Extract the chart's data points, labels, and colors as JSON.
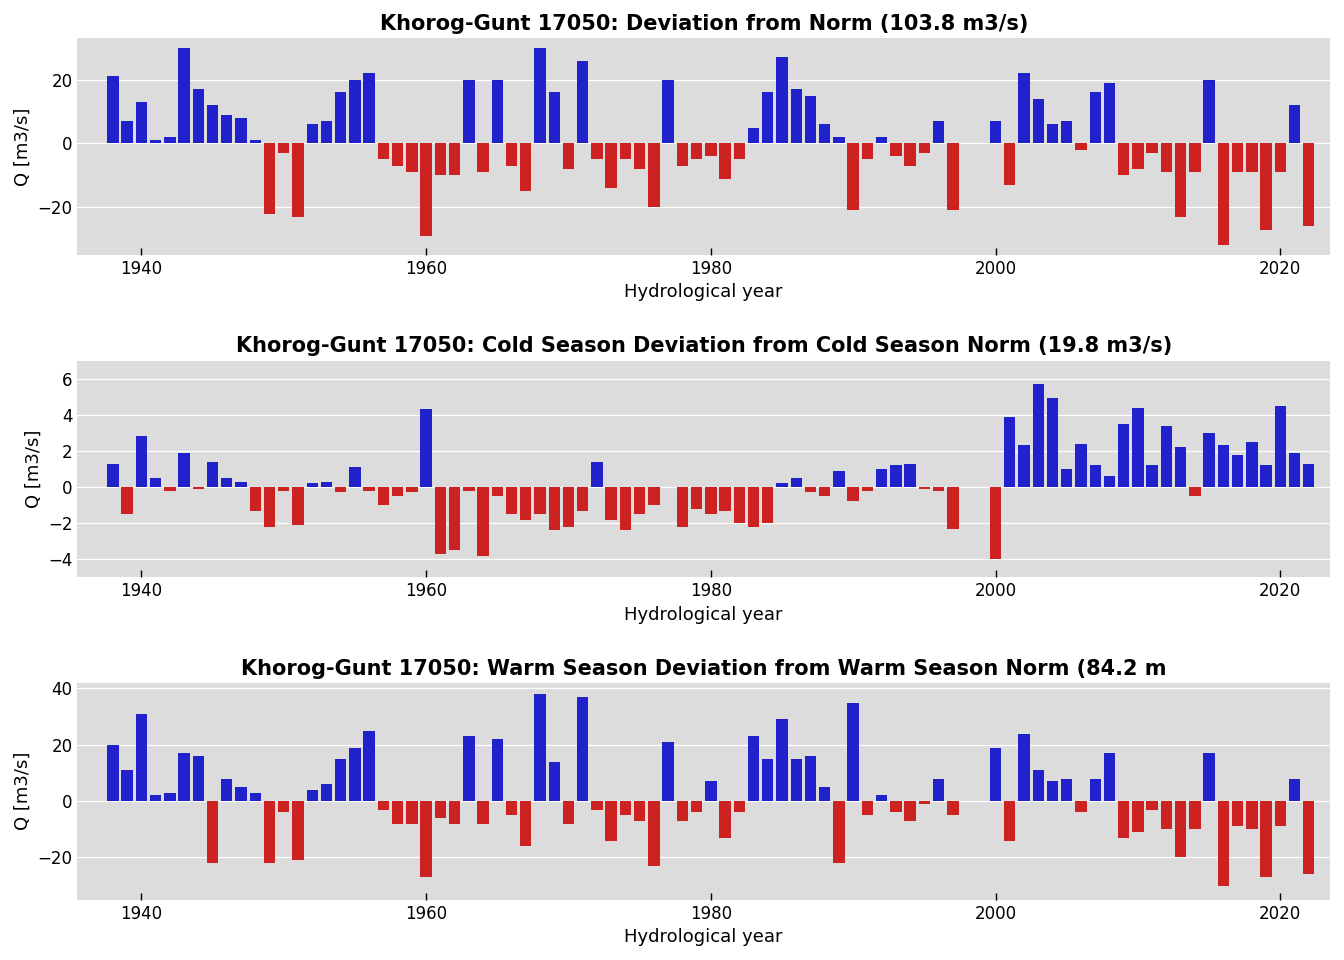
{
  "title1": "Khorog-Gunt 17050: Deviation from Norm (103.8 m3/s)",
  "title2": "Khorog-Gunt 17050: Cold Season Deviation from Cold Season Norm (19.8 m3/s)",
  "title3": "Khorog-Gunt 17050: Warm Season Deviation from Warm Season Norm (84.2 m",
  "xlabel": "Hydrological year",
  "ylabel": "Q [m3/s]",
  "background_color": "#DCDCDC",
  "blue_color": "#2222CC",
  "red_color": "#CC2222",
  "years": [
    1938,
    1939,
    1940,
    1941,
    1942,
    1943,
    1944,
    1945,
    1946,
    1947,
    1948,
    1949,
    1950,
    1951,
    1952,
    1953,
    1954,
    1955,
    1956,
    1957,
    1958,
    1959,
    1960,
    1961,
    1962,
    1963,
    1964,
    1965,
    1966,
    1967,
    1968,
    1969,
    1970,
    1971,
    1972,
    1973,
    1974,
    1975,
    1976,
    1977,
    1978,
    1979,
    1980,
    1981,
    1982,
    1983,
    1984,
    1985,
    1986,
    1987,
    1988,
    1989,
    1990,
    1991,
    1992,
    1993,
    1994,
    1995,
    1996,
    1997,
    1998,
    1999,
    2000,
    2001,
    2002,
    2003,
    2004,
    2005,
    2006,
    2007,
    2008,
    2009,
    2010,
    2011,
    2012,
    2013,
    2014,
    2015,
    2016,
    2017,
    2018,
    2019,
    2020,
    2021,
    2022
  ],
  "annual_deviations": [
    21.0,
    7.0,
    13.0,
    1.0,
    2.0,
    30.0,
    17.0,
    12.0,
    9.0,
    8.0,
    1.0,
    -22.0,
    -3.0,
    -23.0,
    6.0,
    7.0,
    16.0,
    20.0,
    22.0,
    -5.0,
    -7.0,
    -9.0,
    -29.0,
    -10.0,
    -10.0,
    20.0,
    -9.0,
    20.0,
    -7.0,
    -15.0,
    30.0,
    16.0,
    -8.0,
    26.0,
    -5.0,
    -14.0,
    -5.0,
    -8.0,
    -20.0,
    20.0,
    -7.0,
    -5.0,
    -4.0,
    -11.0,
    -5.0,
    5.0,
    16.0,
    27.0,
    17.0,
    15.0,
    6.0,
    2.0,
    -21.0,
    -5.0,
    2.0,
    -4.0,
    -7.0,
    -3.0,
    7.0,
    -21.0,
    null,
    null,
    7.0,
    -13.0,
    22.0,
    14.0,
    6.0,
    7.0,
    -2.0,
    16.0,
    19.0,
    -10.0,
    -8.0,
    -3.0,
    -9.0,
    -23.0,
    -9.0,
    20.0,
    -32.0,
    -9.0,
    -9.0,
    -27.0,
    -9.0,
    12.0,
    -26.0
  ],
  "cold_deviations": [
    1.3,
    -1.5,
    2.8,
    0.5,
    -0.2,
    1.9,
    -0.1,
    1.4,
    0.5,
    0.3,
    -1.3,
    -2.2,
    -0.2,
    -2.1,
    0.2,
    0.3,
    -0.3,
    1.1,
    -0.2,
    -1.0,
    -0.5,
    -0.3,
    4.3,
    -3.7,
    -3.5,
    -0.2,
    -3.8,
    -0.5,
    -1.5,
    -1.8,
    -1.5,
    -2.4,
    -2.2,
    -1.3,
    1.4,
    -1.8,
    -2.4,
    -1.5,
    -1.0,
    0.0,
    -2.2,
    -1.2,
    -1.5,
    -1.3,
    -2.0,
    -2.2,
    -2.0,
    0.2,
    0.5,
    -0.3,
    -0.5,
    0.9,
    -0.8,
    -0.2,
    1.0,
    1.2,
    1.3,
    -0.1,
    -0.2,
    -2.3,
    null,
    null,
    -4.0,
    3.9,
    2.3,
    5.7,
    4.9,
    1.0,
    2.4,
    1.2,
    0.6,
    3.5,
    4.4,
    1.2,
    3.4,
    2.2,
    -0.5,
    3.0,
    2.3,
    1.8,
    2.5,
    1.2,
    4.5,
    1.9,
    1.3
  ],
  "warm_deviations": [
    20.0,
    11.0,
    31.0,
    2.0,
    3.0,
    17.0,
    16.0,
    -22.0,
    8.0,
    5.0,
    3.0,
    -22.0,
    -4.0,
    -21.0,
    4.0,
    6.0,
    15.0,
    19.0,
    25.0,
    -3.0,
    -8.0,
    -8.0,
    -27.0,
    -6.0,
    -8.0,
    23.0,
    -8.0,
    22.0,
    -5.0,
    -16.0,
    38.0,
    14.0,
    -8.0,
    37.0,
    -3.0,
    -14.0,
    -5.0,
    -7.0,
    -23.0,
    21.0,
    -7.0,
    -4.0,
    7.0,
    -13.0,
    -4.0,
    23.0,
    15.0,
    29.0,
    15.0,
    16.0,
    5.0,
    -22.0,
    35.0,
    -5.0,
    2.0,
    -4.0,
    -7.0,
    -1.0,
    8.0,
    -5.0,
    null,
    null,
    19.0,
    -14.0,
    24.0,
    11.0,
    7.0,
    8.0,
    -4.0,
    8.0,
    17.0,
    -13.0,
    -11.0,
    -3.0,
    -10.0,
    -20.0,
    -10.0,
    17.0,
    -30.0,
    -9.0,
    -10.0,
    -27.0,
    -9.0,
    8.0,
    -26.0
  ],
  "ylim1": [
    -35,
    33
  ],
  "ylim2": [
    -5.0,
    7.0
  ],
  "ylim3": [
    -35,
    42
  ],
  "yticks1": [
    -20,
    0,
    20
  ],
  "yticks2": [
    -4,
    -2,
    0,
    2,
    4,
    6
  ],
  "yticks3": [
    -20,
    0,
    20,
    40
  ],
  "xticks": [
    1940,
    1960,
    1980,
    2000,
    2020
  ],
  "title_fontsize": 15,
  "label_fontsize": 13,
  "tick_fontsize": 12,
  "bar_width": 0.8
}
